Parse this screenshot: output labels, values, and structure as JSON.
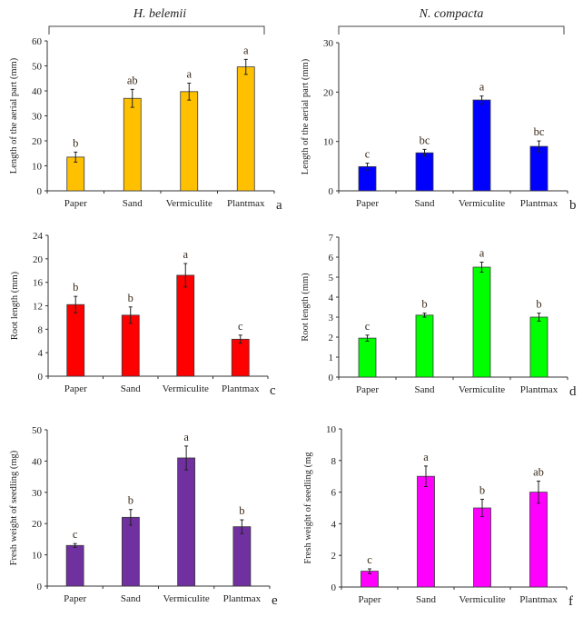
{
  "group_titles": [
    "H. belemii",
    "N. compacta"
  ],
  "chart_data": [
    {
      "type": "bar",
      "panel_label": "a",
      "group": "H. belemii",
      "ylabel": "Length of the aerial part (mm)",
      "ylim": [
        0,
        60
      ],
      "yticks": [
        0,
        10,
        20,
        30,
        40,
        50,
        60
      ],
      "categories": [
        "Paper",
        "Sand",
        "Vermiculite",
        "Plantmax"
      ],
      "values": [
        13.5,
        37,
        39.7,
        49.6
      ],
      "errors": [
        2,
        3.6,
        3.4,
        3
      ],
      "significance": [
        "b",
        "ab",
        "a",
        "a"
      ],
      "color": "#FFC000"
    },
    {
      "type": "bar",
      "panel_label": "b",
      "group": "N. compacta",
      "ylabel": "Length of the aerial part (mm)",
      "ylim": [
        0,
        30
      ],
      "yticks": [
        0,
        10,
        20,
        30
      ],
      "categories": [
        "Paper",
        "Sand",
        "Vermiculite",
        "Plantmax"
      ],
      "values": [
        4.9,
        7.7,
        18.4,
        9
      ],
      "errors": [
        0.7,
        0.7,
        0.8,
        1.1
      ],
      "significance": [
        "c",
        "bc",
        "a",
        "bc"
      ],
      "color": "#0000FF"
    },
    {
      "type": "bar",
      "panel_label": "c",
      "ylabel": "Root length (mm)",
      "ylim": [
        0,
        24
      ],
      "yticks": [
        0,
        4,
        8,
        12,
        16,
        20,
        24
      ],
      "categories": [
        "Paper",
        "Sand",
        "Vermiculite",
        "Plantmax"
      ],
      "values": [
        12.2,
        10.4,
        17.2,
        6.3
      ],
      "errors": [
        1.4,
        1.4,
        2,
        0.7
      ],
      "significance": [
        "b",
        "b",
        "a",
        "c"
      ],
      "color": "#FF0000"
    },
    {
      "type": "bar",
      "panel_label": "d",
      "ylabel": "Root length (mm)",
      "ylim": [
        0,
        7
      ],
      "yticks": [
        0,
        1,
        2,
        3,
        4,
        5,
        6,
        7
      ],
      "categories": [
        "Paper",
        "Sand",
        "Vermiculite",
        "Plantmax"
      ],
      "values": [
        1.95,
        3.1,
        5.5,
        3
      ],
      "errors": [
        0.15,
        0.1,
        0.25,
        0.2
      ],
      "significance": [
        "c",
        "b",
        "a",
        "b"
      ],
      "color": "#00FF00"
    },
    {
      "type": "bar",
      "panel_label": "e",
      "ylabel": "Fresh weight of seedling (mg)",
      "ylim": [
        0,
        50
      ],
      "yticks": [
        0,
        10,
        20,
        30,
        40,
        50
      ],
      "categories": [
        "Paper",
        "Sand",
        "Vermiculite",
        "Plantmax"
      ],
      "values": [
        13,
        22,
        41,
        19
      ],
      "errors": [
        0.6,
        2.5,
        3.8,
        2.2
      ],
      "significance": [
        "c",
        "b",
        "a",
        "b"
      ],
      "color": "#7030A0"
    },
    {
      "type": "bar",
      "panel_label": "f",
      "ylabel": "Fresh weight of seedling (mg",
      "ylim": [
        0,
        10
      ],
      "yticks": [
        0,
        2,
        4,
        6,
        8,
        10
      ],
      "categories": [
        "Paper",
        "Sand",
        "Vermiculite",
        "Plantmax"
      ],
      "values": [
        1,
        7,
        5,
        6
      ],
      "errors": [
        0.15,
        0.65,
        0.55,
        0.7
      ],
      "significance": [
        "c",
        "a",
        "b",
        "ab"
      ],
      "color": "#FF00FF"
    }
  ]
}
